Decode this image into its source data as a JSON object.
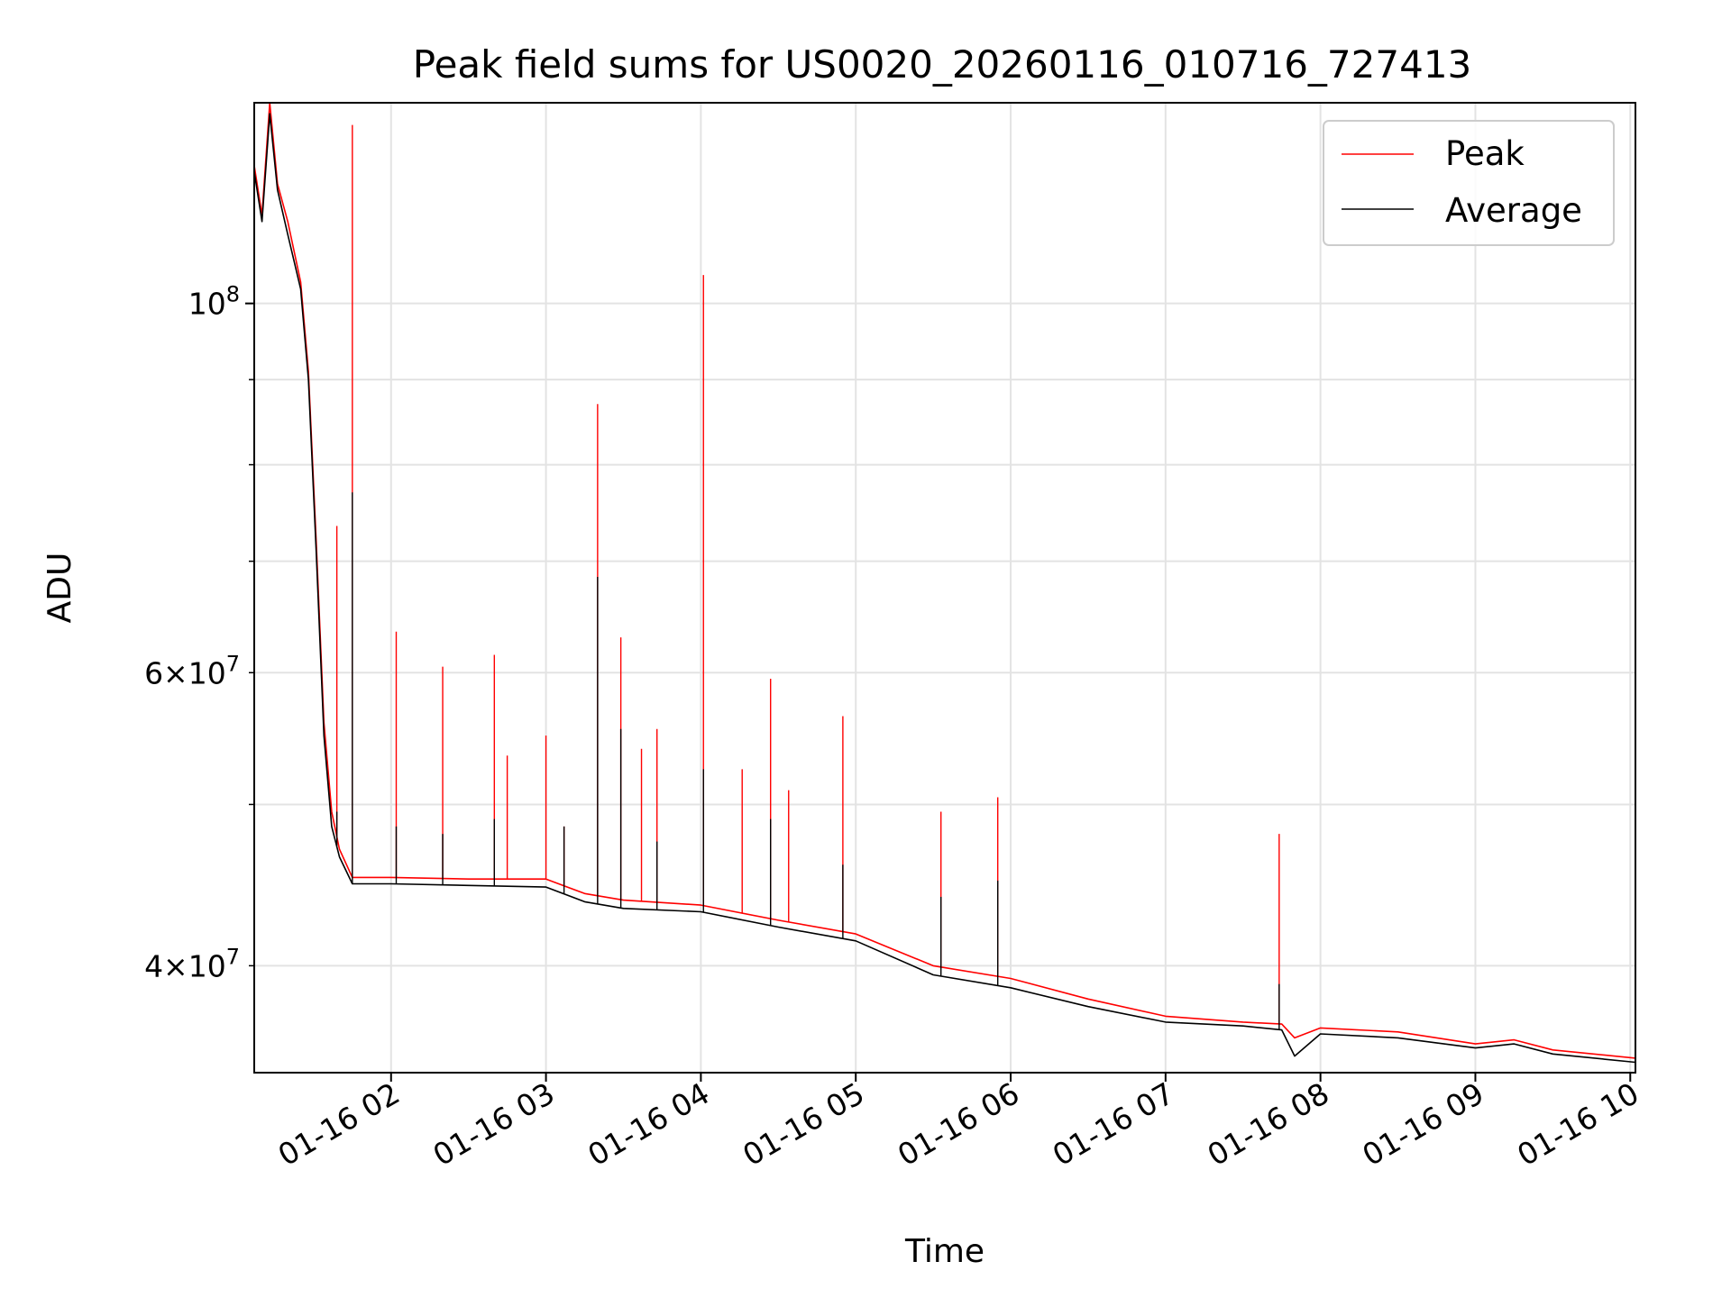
{
  "chart_data": {
    "type": "line",
    "title": "Peak field sums for US0020_20260116_010716_727413",
    "xlabel": "Time",
    "ylabel": "ADU",
    "yscale": "log",
    "grid": true,
    "legend_position": "top-right",
    "xlim": [
      "2026-01-16 01:07",
      "2026-01-16 10:02"
    ],
    "ylim": [
      34500000,
      132000000
    ],
    "x_ticks": [
      {
        "value": "2026-01-16 02:00",
        "label": "01-16 02"
      },
      {
        "value": "2026-01-16 03:00",
        "label": "01-16 03"
      },
      {
        "value": "2026-01-16 04:00",
        "label": "01-16 04"
      },
      {
        "value": "2026-01-16 05:00",
        "label": "01-16 05"
      },
      {
        "value": "2026-01-16 06:00",
        "label": "01-16 06"
      },
      {
        "value": "2026-01-16 07:00",
        "label": "01-16 07"
      },
      {
        "value": "2026-01-16 08:00",
        "label": "01-16 08"
      },
      {
        "value": "2026-01-16 09:00",
        "label": "01-16 09"
      },
      {
        "value": "2026-01-16 10:00",
        "label": "01-16 10"
      }
    ],
    "y_ticks_major": [
      {
        "value": 100000000,
        "base": "10",
        "exp": "8",
        "coef": ""
      }
    ],
    "y_ticks_minor": [
      {
        "value": 40000000,
        "coef": "4",
        "base": "10",
        "exp": "7"
      },
      {
        "value": 50000000,
        "coef": "",
        "base": "",
        "exp": ""
      },
      {
        "value": 60000000,
        "coef": "6",
        "base": "10",
        "exp": "7"
      },
      {
        "value": 70000000,
        "coef": "",
        "base": "",
        "exp": ""
      },
      {
        "value": 80000000,
        "coef": "",
        "base": "",
        "exp": ""
      },
      {
        "value": 90000000,
        "coef": "",
        "base": "",
        "exp": ""
      }
    ],
    "series": [
      {
        "name": "Peak",
        "color": "#ff0000",
        "points": [
          [
            "2026-01-16 01:07",
            121000000
          ],
          [
            "2026-01-16 01:10",
            113000000
          ],
          [
            "2026-01-16 01:13",
            132000000
          ],
          [
            "2026-01-16 01:16",
            118000000
          ],
          [
            "2026-01-16 01:20",
            112000000
          ],
          [
            "2026-01-16 01:25",
            103000000
          ],
          [
            "2026-01-16 01:28",
            91000000
          ],
          [
            "2026-01-16 01:31",
            72000000
          ],
          [
            "2026-01-16 01:34",
            56000000
          ],
          [
            "2026-01-16 01:37",
            49500000
          ],
          [
            "2026-01-16 01:40",
            47000000
          ],
          [
            "2026-01-16 01:45",
            45200000
          ],
          [
            "2026-01-16 02:00",
            45200000
          ],
          [
            "2026-01-16 02:30",
            45100000
          ],
          [
            "2026-01-16 03:00",
            45100000
          ],
          [
            "2026-01-16 03:15",
            44200000
          ],
          [
            "2026-01-16 03:30",
            43800000
          ],
          [
            "2026-01-16 04:00",
            43500000
          ],
          [
            "2026-01-16 04:30",
            42600000
          ],
          [
            "2026-01-16 05:00",
            41800000
          ],
          [
            "2026-01-16 05:30",
            40000000
          ],
          [
            "2026-01-16 06:00",
            39300000
          ],
          [
            "2026-01-16 06:30",
            38200000
          ],
          [
            "2026-01-16 07:00",
            37300000
          ],
          [
            "2026-01-16 07:30",
            37000000
          ],
          [
            "2026-01-16 07:45",
            36900000
          ],
          [
            "2026-01-16 07:50",
            36200000
          ],
          [
            "2026-01-16 08:00",
            36700000
          ],
          [
            "2026-01-16 08:30",
            36500000
          ],
          [
            "2026-01-16 09:00",
            35900000
          ],
          [
            "2026-01-16 09:15",
            36100000
          ],
          [
            "2026-01-16 09:30",
            35600000
          ],
          [
            "2026-01-16 10:02",
            35200000
          ]
        ],
        "spikes": [
          [
            "2026-01-16 01:39",
            73500000
          ],
          [
            "2026-01-16 01:45",
            128000000
          ],
          [
            "2026-01-16 02:02",
            63500000
          ],
          [
            "2026-01-16 02:20",
            60500000
          ],
          [
            "2026-01-16 02:40",
            61500000
          ],
          [
            "2026-01-16 02:45",
            53500000
          ],
          [
            "2026-01-16 03:00",
            55000000
          ],
          [
            "2026-01-16 03:07",
            48500000
          ],
          [
            "2026-01-16 03:20",
            87000000
          ],
          [
            "2026-01-16 03:29",
            63000000
          ],
          [
            "2026-01-16 03:37",
            54000000
          ],
          [
            "2026-01-16 03:43",
            55500000
          ],
          [
            "2026-01-16 04:01",
            104000000
          ],
          [
            "2026-01-16 04:16",
            52500000
          ],
          [
            "2026-01-16 04:27",
            59500000
          ],
          [
            "2026-01-16 04:34",
            51000000
          ],
          [
            "2026-01-16 04:55",
            56500000
          ],
          [
            "2026-01-16 05:33",
            49500000
          ],
          [
            "2026-01-16 05:55",
            50500000
          ],
          [
            "2026-01-16 07:44",
            48000000
          ]
        ]
      },
      {
        "name": "Average",
        "color": "#000000",
        "points": [
          [
            "2026-01-16 01:07",
            120000000
          ],
          [
            "2026-01-16 01:10",
            112000000
          ],
          [
            "2026-01-16 01:13",
            130000000
          ],
          [
            "2026-01-16 01:16",
            117000000
          ],
          [
            "2026-01-16 01:20",
            110000000
          ],
          [
            "2026-01-16 01:25",
            102000000
          ],
          [
            "2026-01-16 01:28",
            90000000
          ],
          [
            "2026-01-16 01:31",
            71000000
          ],
          [
            "2026-01-16 01:34",
            55000000
          ],
          [
            "2026-01-16 01:37",
            48500000
          ],
          [
            "2026-01-16 01:40",
            46500000
          ],
          [
            "2026-01-16 01:45",
            44800000
          ],
          [
            "2026-01-16 02:00",
            44800000
          ],
          [
            "2026-01-16 02:30",
            44700000
          ],
          [
            "2026-01-16 03:00",
            44600000
          ],
          [
            "2026-01-16 03:15",
            43700000
          ],
          [
            "2026-01-16 03:30",
            43300000
          ],
          [
            "2026-01-16 04:00",
            43100000
          ],
          [
            "2026-01-16 04:30",
            42200000
          ],
          [
            "2026-01-16 05:00",
            41400000
          ],
          [
            "2026-01-16 05:30",
            39500000
          ],
          [
            "2026-01-16 06:00",
            38800000
          ],
          [
            "2026-01-16 06:30",
            37800000
          ],
          [
            "2026-01-16 07:00",
            37000000
          ],
          [
            "2026-01-16 07:30",
            36800000
          ],
          [
            "2026-01-16 07:45",
            36600000
          ],
          [
            "2026-01-16 07:50",
            35300000
          ],
          [
            "2026-01-16 08:00",
            36400000
          ],
          [
            "2026-01-16 08:30",
            36200000
          ],
          [
            "2026-01-16 09:00",
            35700000
          ],
          [
            "2026-01-16 09:15",
            35900000
          ],
          [
            "2026-01-16 09:30",
            35400000
          ],
          [
            "2026-01-16 10:02",
            35000000
          ]
        ],
        "spikes": [
          [
            "2026-01-16 01:39",
            49500000
          ],
          [
            "2026-01-16 01:45",
            77000000
          ],
          [
            "2026-01-16 02:02",
            48500000
          ],
          [
            "2026-01-16 02:20",
            48000000
          ],
          [
            "2026-01-16 02:40",
            49000000
          ],
          [
            "2026-01-16 03:07",
            48500000
          ],
          [
            "2026-01-16 03:20",
            68500000
          ],
          [
            "2026-01-16 03:29",
            55500000
          ],
          [
            "2026-01-16 03:43",
            47500000
          ],
          [
            "2026-01-16 04:01",
            52500000
          ],
          [
            "2026-01-16 04:27",
            49000000
          ],
          [
            "2026-01-16 04:55",
            46000000
          ],
          [
            "2026-01-16 05:33",
            44000000
          ],
          [
            "2026-01-16 05:55",
            45000000
          ],
          [
            "2026-01-16 07:44",
            39000000
          ]
        ]
      }
    ]
  }
}
